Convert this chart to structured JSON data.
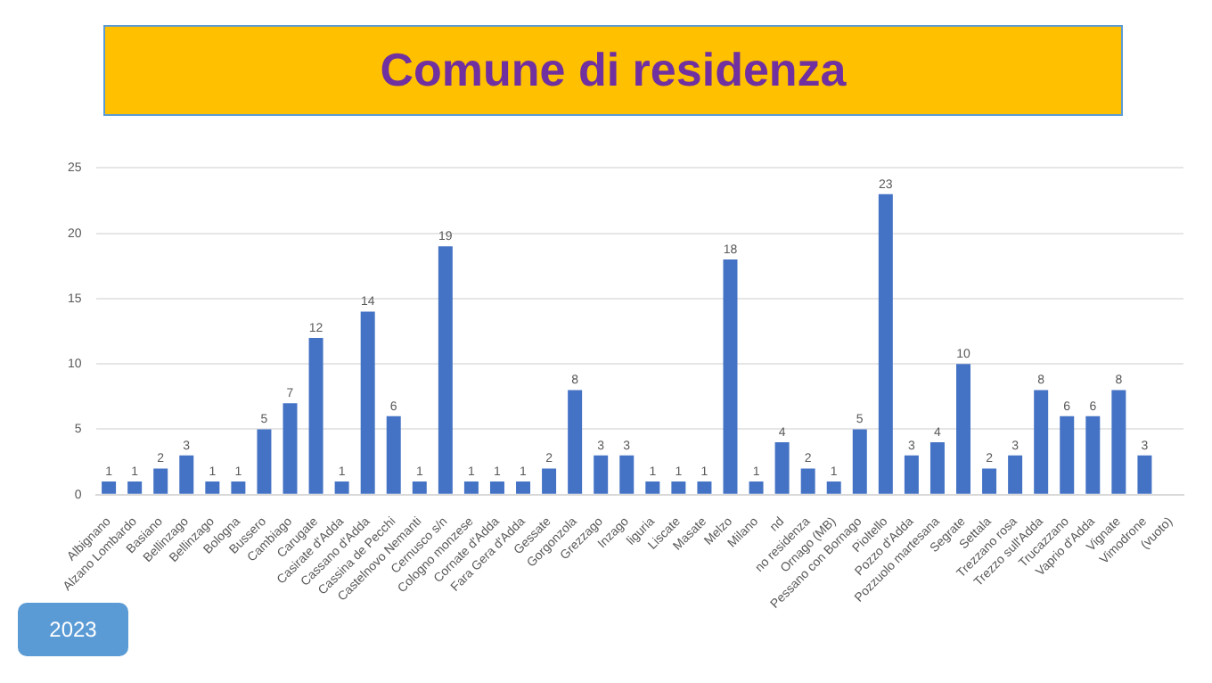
{
  "chart_data": {
    "type": "bar",
    "title": "Comune di residenza",
    "categories": [
      "Albignano",
      "Alzano Lombardo",
      "Basiano",
      "Bellinzago",
      "Bellinzago",
      "Bologna",
      "Bussero",
      "Cambiago",
      "Carugate",
      "Casirate d'Adda",
      "Cassano d'Adda",
      "Cassina de Pecchi",
      "Castelnovo Nemanti",
      "Cernusco s/n",
      "Cologno monzese",
      "Cornate d'Adda",
      "Fara Gera d'Adda",
      "Gessate",
      "Gorgonzola",
      "Grezzago",
      "Inzago",
      "liguria",
      "Liscate",
      "Masate",
      "Melzo",
      "Milano",
      "nd",
      "no residenza",
      "Ornago (MB)",
      "Pessano con Bornago",
      "Pioltello",
      "Pozzo d'Adda",
      "Pozzuolo martesana",
      "Segrate",
      "Settala",
      "Trezzano rosa",
      "Trezzo sull'Adda",
      "Trucazzano",
      "Vaprio d'Adda",
      "Vignate",
      "Vimodrone",
      "(vuoto)"
    ],
    "values": [
      1,
      1,
      2,
      3,
      1,
      1,
      5,
      7,
      12,
      1,
      14,
      6,
      1,
      19,
      1,
      1,
      1,
      2,
      8,
      3,
      3,
      1,
      1,
      1,
      18,
      1,
      4,
      2,
      1,
      5,
      23,
      3,
      4,
      10,
      2,
      3,
      8,
      6,
      6,
      8,
      3,
      null
    ],
    "color": "#4472c4",
    "ylim": [
      0,
      25
    ],
    "yticks": [
      0,
      5,
      10,
      15,
      20,
      25
    ],
    "grid": "y",
    "data_labels": true,
    "annotations": [
      "2023"
    ]
  }
}
